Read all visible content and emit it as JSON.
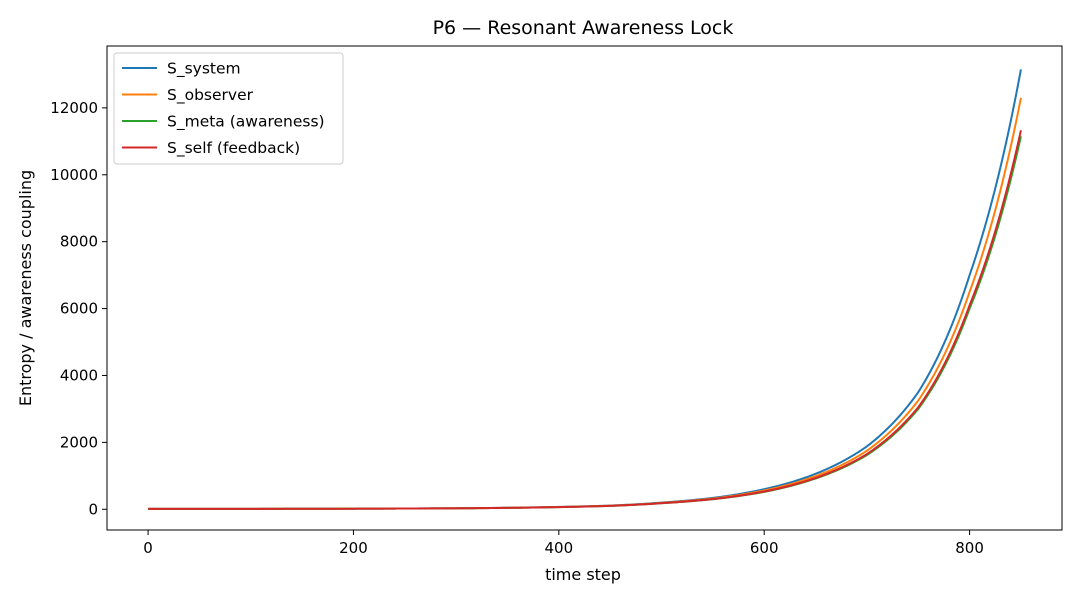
{
  "chart_data": {
    "type": "line",
    "title": "P6 — Resonant Awareness Lock",
    "xlabel": "time step",
    "ylabel": "Entropy / awareness coupling",
    "xlim": [
      -40,
      890
    ],
    "ylim": [
      -620,
      13850
    ],
    "xticks": [
      0,
      200,
      400,
      600,
      800
    ],
    "yticks": [
      0,
      2000,
      4000,
      6000,
      8000,
      10000,
      12000
    ],
    "grid": false,
    "legend_position": "top-left",
    "x": [
      0,
      100,
      200,
      300,
      350,
      400,
      450,
      500,
      550,
      600,
      650,
      700,
      750,
      800,
      850
    ],
    "series": [
      {
        "name": "S_system",
        "color": "#1f77b4",
        "values": [
          10,
          13,
          18,
          30,
          45,
          70,
          110,
          200,
          340,
          600,
          1060,
          1880,
          3500,
          7000,
          13150
        ]
      },
      {
        "name": "S_observer",
        "color": "#ff7f0e",
        "values": [
          10,
          13,
          18,
          29,
          43,
          67,
          105,
          190,
          320,
          560,
          990,
          1750,
          3250,
          6500,
          12300
        ]
      },
      {
        "name": "S_meta (awareness)",
        "color": "#2ca02c",
        "values": [
          10,
          12,
          17,
          28,
          41,
          64,
          100,
          180,
          300,
          520,
          920,
          1620,
          3000,
          6000,
          11150
        ]
      },
      {
        "name": "S_self (feedback)",
        "color": "#d62728",
        "values": [
          10,
          12,
          17,
          28,
          42,
          65,
          102,
          182,
          305,
          530,
          935,
          1650,
          3050,
          6100,
          11330
        ]
      }
    ]
  }
}
